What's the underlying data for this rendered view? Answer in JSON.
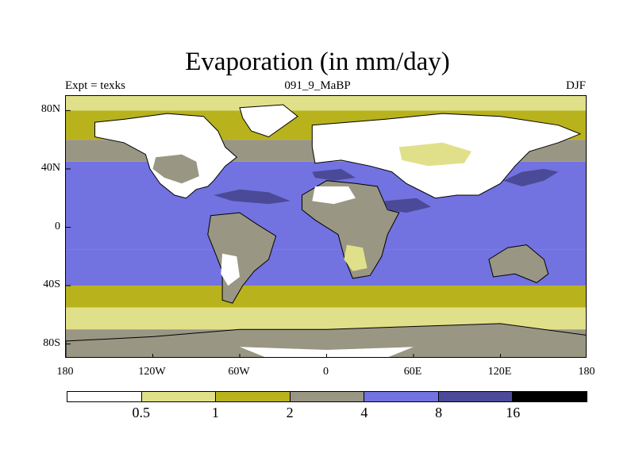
{
  "chart_data": {
    "type": "heatmap",
    "title": "Evaporation (in mm/day)",
    "subtitle_left": "Expt = texks",
    "subtitle_center": "091_9_MaBP",
    "subtitle_right": "DJF",
    "x_ticks": [
      {
        "value": -180,
        "label": "180"
      },
      {
        "value": -120,
        "label": "120W"
      },
      {
        "value": -60,
        "label": "60W"
      },
      {
        "value": 0,
        "label": "0"
      },
      {
        "value": 60,
        "label": "60E"
      },
      {
        "value": 120,
        "label": "120E"
      },
      {
        "value": 180,
        "label": "180"
      }
    ],
    "y_ticks": [
      {
        "value": 80,
        "label": "80N"
      },
      {
        "value": 40,
        "label": "40N"
      },
      {
        "value": 0,
        "label": "0"
      },
      {
        "value": -40,
        "label": "40S"
      },
      {
        "value": -80,
        "label": "80S"
      }
    ],
    "xlim": [
      -180,
      180
    ],
    "ylim": [
      -90,
      90
    ],
    "levels": [
      0.5,
      1,
      2,
      4,
      8,
      16
    ],
    "level_labels": [
      "0.5",
      "1",
      "2",
      "4",
      "8",
      "16"
    ],
    "colors": [
      "#ffffff",
      "#e1e08a",
      "#b8b21c",
      "#9a9684",
      "#7272e0",
      "#4a4a98",
      "#000000"
    ],
    "land_outline_color": "#000000",
    "lat_bands": [
      {
        "lat": [
          80,
          90
        ],
        "level_index": 1
      },
      {
        "lat": [
          60,
          80
        ],
        "level_index": 2
      },
      {
        "lat": [
          45,
          60
        ],
        "level_index": 3
      },
      {
        "lat": [
          -15,
          45
        ],
        "level_index": 4
      },
      {
        "lat": [
          -40,
          -15
        ],
        "level_index": 4
      },
      {
        "lat": [
          -55,
          -40
        ],
        "level_index": 2
      },
      {
        "lat": [
          -70,
          -55
        ],
        "level_index": 1
      },
      {
        "lat": [
          -90,
          -70
        ],
        "level_index": 3
      }
    ],
    "regions": [
      {
        "name": "north-america",
        "level_index": 0,
        "outline": true,
        "pts": [
          [
            -160,
            72
          ],
          [
            -140,
            74
          ],
          [
            -110,
            78
          ],
          [
            -85,
            76
          ],
          [
            -75,
            66
          ],
          [
            -70,
            55
          ],
          [
            -62,
            48
          ],
          [
            -70,
            42
          ],
          [
            -78,
            32
          ],
          [
            -82,
            28
          ],
          [
            -90,
            26
          ],
          [
            -97,
            20
          ],
          [
            -105,
            22
          ],
          [
            -115,
            30
          ],
          [
            -122,
            40
          ],
          [
            -125,
            50
          ],
          [
            -140,
            58
          ],
          [
            -160,
            62
          ]
        ]
      },
      {
        "name": "north-america-interior",
        "level_index": 3,
        "outline": false,
        "pts": [
          [
            -118,
            48
          ],
          [
            -100,
            50
          ],
          [
            -90,
            45
          ],
          [
            -88,
            35
          ],
          [
            -100,
            30
          ],
          [
            -112,
            34
          ],
          [
            -120,
            40
          ]
        ]
      },
      {
        "name": "south-america",
        "level_index": 3,
        "outline": true,
        "pts": [
          [
            -80,
            8
          ],
          [
            -60,
            10
          ],
          [
            -48,
            2
          ],
          [
            -35,
            -6
          ],
          [
            -40,
            -22
          ],
          [
            -50,
            -30
          ],
          [
            -58,
            -40
          ],
          [
            -65,
            -52
          ],
          [
            -72,
            -50
          ],
          [
            -72,
            -30
          ],
          [
            -78,
            -15
          ],
          [
            -82,
            -5
          ]
        ]
      },
      {
        "name": "south-america-dry",
        "level_index": 0,
        "outline": false,
        "pts": [
          [
            -72,
            -18
          ],
          [
            -62,
            -20
          ],
          [
            -60,
            -34
          ],
          [
            -68,
            -40
          ],
          [
            -73,
            -32
          ]
        ]
      },
      {
        "name": "eurasia",
        "level_index": 0,
        "outline": true,
        "pts": [
          [
            -10,
            70
          ],
          [
            40,
            74
          ],
          [
            80,
            78
          ],
          [
            120,
            76
          ],
          [
            160,
            70
          ],
          [
            175,
            64
          ],
          [
            160,
            58
          ],
          [
            140,
            52
          ],
          [
            130,
            42
          ],
          [
            120,
            30
          ],
          [
            105,
            22
          ],
          [
            90,
            22
          ],
          [
            75,
            20
          ],
          [
            65,
            25
          ],
          [
            55,
            30
          ],
          [
            45,
            38
          ],
          [
            30,
            42
          ],
          [
            10,
            46
          ],
          [
            -8,
            44
          ],
          [
            -10,
            55
          ]
        ]
      },
      {
        "name": "eurasia-interior",
        "level_index": 1,
        "outline": false,
        "pts": [
          [
            50,
            55
          ],
          [
            80,
            58
          ],
          [
            100,
            52
          ],
          [
            95,
            44
          ],
          [
            70,
            42
          ],
          [
            52,
            46
          ]
        ]
      },
      {
        "name": "africa",
        "level_index": 3,
        "outline": true,
        "pts": [
          [
            -17,
            22
          ],
          [
            0,
            32
          ],
          [
            20,
            30
          ],
          [
            35,
            28
          ],
          [
            42,
            12
          ],
          [
            50,
            10
          ],
          [
            42,
            -5
          ],
          [
            38,
            -20
          ],
          [
            30,
            -33
          ],
          [
            18,
            -35
          ],
          [
            12,
            -20
          ],
          [
            8,
            -5
          ],
          [
            -8,
            5
          ],
          [
            -17,
            12
          ]
        ]
      },
      {
        "name": "africa-dry",
        "level_index": 0,
        "outline": false,
        "pts": [
          [
            -8,
            28
          ],
          [
            15,
            28
          ],
          [
            20,
            20
          ],
          [
            5,
            16
          ],
          [
            -10,
            18
          ]
        ]
      },
      {
        "name": "africa-south-dry",
        "level_index": 1,
        "outline": false,
        "pts": [
          [
            14,
            -12
          ],
          [
            25,
            -14
          ],
          [
            28,
            -28
          ],
          [
            18,
            -30
          ],
          [
            12,
            -22
          ]
        ]
      },
      {
        "name": "australia",
        "level_index": 3,
        "outline": true,
        "pts": [
          [
            112,
            -22
          ],
          [
            125,
            -14
          ],
          [
            138,
            -12
          ],
          [
            150,
            -22
          ],
          [
            153,
            -32
          ],
          [
            145,
            -38
          ],
          [
            130,
            -32
          ],
          [
            115,
            -34
          ]
        ]
      },
      {
        "name": "greenland",
        "level_index": 0,
        "outline": true,
        "pts": [
          [
            -60,
            82
          ],
          [
            -30,
            84
          ],
          [
            -20,
            76
          ],
          [
            -40,
            62
          ],
          [
            -52,
            66
          ],
          [
            -58,
            75
          ]
        ]
      },
      {
        "name": "antarctica",
        "level_index": 3,
        "outline": true,
        "pts": [
          [
            -180,
            -78
          ],
          [
            -120,
            -75
          ],
          [
            -60,
            -70
          ],
          [
            0,
            -70
          ],
          [
            60,
            -68
          ],
          [
            120,
            -66
          ],
          [
            180,
            -74
          ],
          [
            180,
            -90
          ],
          [
            -180,
            -90
          ]
        ]
      },
      {
        "name": "antarctica-dry",
        "level_index": 0,
        "outline": false,
        "pts": [
          [
            -60,
            -82
          ],
          [
            0,
            -84
          ],
          [
            60,
            -82
          ],
          [
            40,
            -90
          ],
          [
            -40,
            -90
          ]
        ]
      },
      {
        "name": "kuroshio-max",
        "level_index": 5,
        "outline": false,
        "pts": [
          [
            122,
            32
          ],
          [
            135,
            38
          ],
          [
            150,
            40
          ],
          [
            160,
            38
          ],
          [
            150,
            32
          ],
          [
            135,
            28
          ]
        ]
      },
      {
        "name": "gulfstream-max",
        "level_index": 5,
        "outline": false,
        "pts": [
          [
            -78,
            22
          ],
          [
            -60,
            26
          ],
          [
            -40,
            24
          ],
          [
            -25,
            18
          ],
          [
            -40,
            16
          ],
          [
            -65,
            18
          ]
        ]
      },
      {
        "name": "tethys-max",
        "level_index": 5,
        "outline": false,
        "pts": [
          [
            -10,
            38
          ],
          [
            10,
            40
          ],
          [
            20,
            34
          ],
          [
            5,
            32
          ],
          [
            -8,
            34
          ]
        ]
      },
      {
        "name": "indian-max",
        "level_index": 5,
        "outline": false,
        "pts": [
          [
            40,
            18
          ],
          [
            62,
            20
          ],
          [
            72,
            14
          ],
          [
            55,
            10
          ],
          [
            42,
            12
          ]
        ]
      }
    ]
  }
}
